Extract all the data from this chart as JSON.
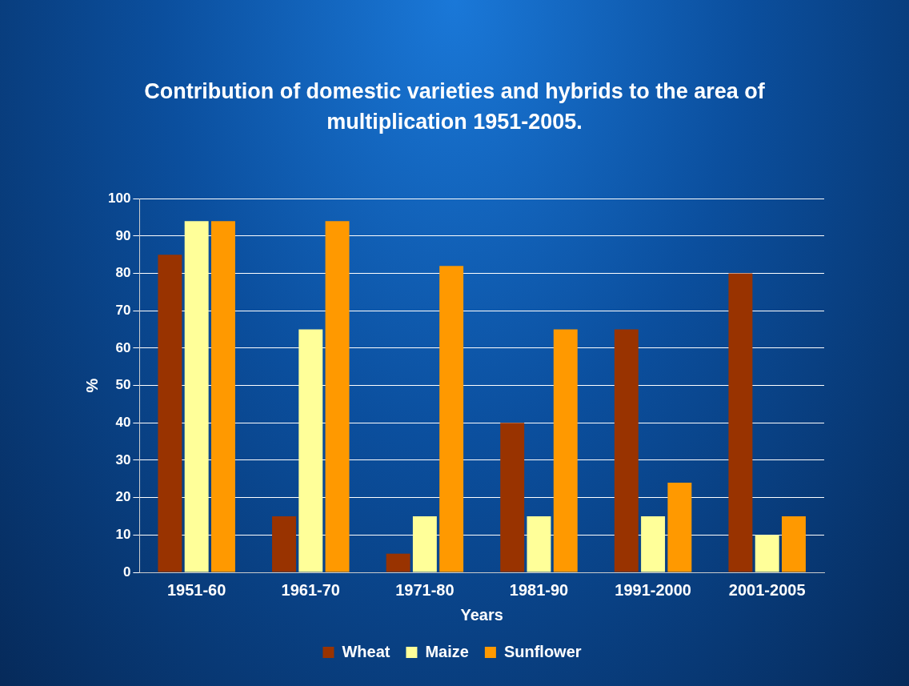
{
  "chart_data": {
    "type": "bar",
    "title": "Contribution of domestic varieties and hybrids to the area of multiplication 1951-2005.",
    "xlabel": "Years",
    "ylabel": "%",
    "categories": [
      "1951-60",
      "1961-70",
      "1971-80",
      "1981-90",
      "1991-2000",
      "2001-2005"
    ],
    "series": [
      {
        "name": "Wheat",
        "color": "#993300",
        "values": [
          85,
          15,
          5,
          40,
          65,
          80
        ]
      },
      {
        "name": "Maize",
        "color": "#ffff99",
        "values": [
          94,
          65,
          15,
          15,
          15,
          10
        ]
      },
      {
        "name": "Sunflower",
        "color": "#ff9900",
        "values": [
          94,
          94,
          82,
          65,
          24,
          15
        ]
      }
    ],
    "ylim": [
      0,
      100
    ],
    "yticks": [
      0,
      10,
      20,
      30,
      40,
      50,
      60,
      70,
      80,
      90,
      100
    ],
    "grid": "y",
    "legend": "bottom"
  }
}
